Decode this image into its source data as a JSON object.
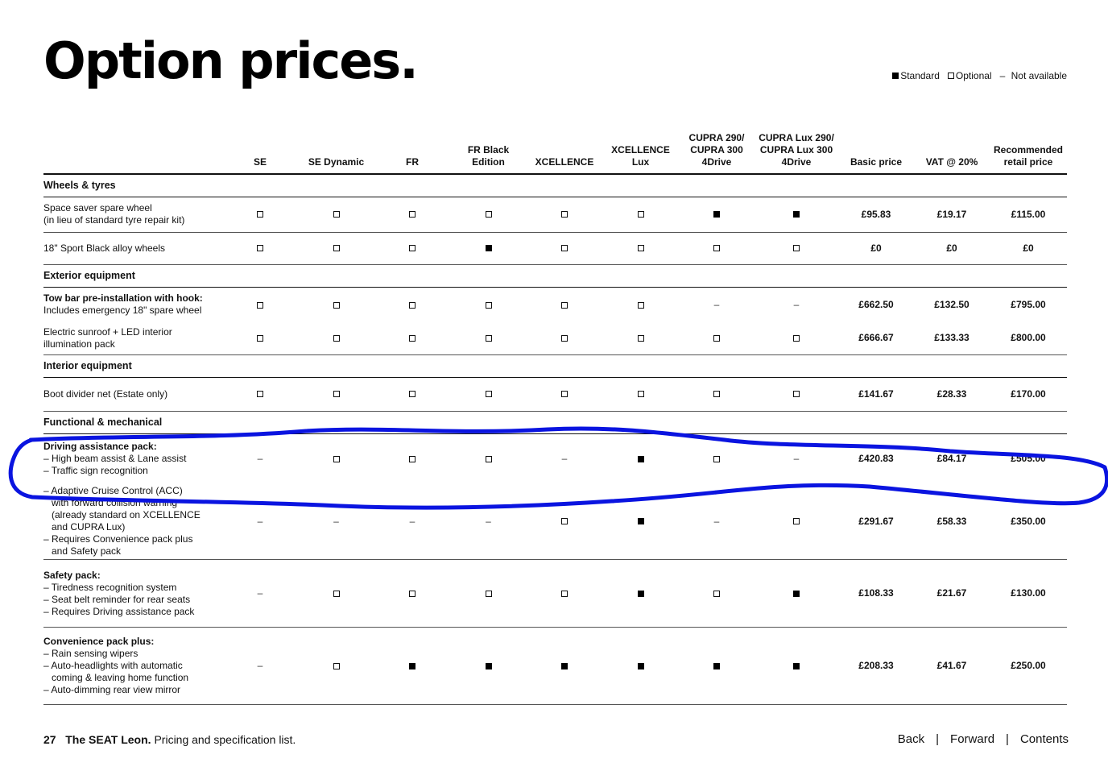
{
  "title": "Option prices.",
  "legend": {
    "standard": "Standard",
    "optional": "Optional",
    "not_available": "Not available",
    "dash": "–"
  },
  "columns": [
    "SE",
    "SE Dynamic",
    "FR",
    "FR Black Edition",
    "XCELLENCE",
    "XCELLENCE Lux",
    "CUPRA 290/ CUPRA 300 4Drive",
    "CUPRA Lux 290/ CUPRA Lux 300 4Drive",
    "Basic price",
    "VAT @ 20%",
    "Recommended retail price"
  ],
  "column_lines": [
    [],
    [],
    [],
    [
      "FR Black",
      "Edition"
    ],
    [],
    [],
    [
      "CUPRA 290/",
      "CUPRA 300",
      "4Drive"
    ],
    [
      "CUPRA Lux 290/",
      "CUPRA Lux 300",
      "4Drive"
    ],
    [],
    [],
    [
      "Recommended",
      "retail price"
    ]
  ],
  "sections": [
    {
      "title": "Wheels & tyres",
      "rows": [
        {
          "lines": [
            "Space saver spare wheel",
            "(in lieu of standard tyre repair kit)"
          ],
          "bold_first": false,
          "avail": [
            "O",
            "O",
            "O",
            "O",
            "O",
            "O",
            "S",
            "S"
          ],
          "basic": "£95.83",
          "vat": "£19.17",
          "rrp": "£115.00",
          "sep": true
        },
        {
          "lines": [
            "18\" Sport Black alloy wheels"
          ],
          "bold_first": false,
          "avail": [
            "O",
            "O",
            "O",
            "S",
            "O",
            "O",
            "O",
            "O"
          ],
          "basic": "£0",
          "vat": "£0",
          "rrp": "£0",
          "sep": true
        }
      ]
    },
    {
      "title": "Exterior equipment",
      "rows": [
        {
          "lines": [
            "Tow bar pre-installation with hook:",
            "Includes emergency 18\" spare wheel"
          ],
          "bold_first": true,
          "avail": [
            "O",
            "O",
            "O",
            "O",
            "O",
            "O",
            "N",
            "N"
          ],
          "basic": "£662.50",
          "vat": "£132.50",
          "rrp": "£795.00",
          "sep": false
        },
        {
          "lines": [
            "Electric sunroof + LED interior",
            "illumination pack"
          ],
          "bold_first": false,
          "avail": [
            "O",
            "O",
            "O",
            "O",
            "O",
            "O",
            "O",
            "O"
          ],
          "basic": "£666.67",
          "vat": "£133.33",
          "rrp": "£800.00",
          "sep": true
        }
      ]
    },
    {
      "title": "Interior equipment",
      "rows": [
        {
          "lines": [
            "Boot divider net (Estate only)"
          ],
          "bold_first": false,
          "avail": [
            "O",
            "O",
            "O",
            "O",
            "O",
            "O",
            "O",
            "O"
          ],
          "basic": "£141.67",
          "vat": "£28.33",
          "rrp": "£170.00",
          "sep": true
        }
      ]
    },
    {
      "title": "Functional & mechanical",
      "rows": [
        {
          "lines": [
            "Driving assistance pack:",
            "– High beam assist & Lane assist",
            "– Traffic sign recognition"
          ],
          "bold_first": true,
          "avail": [
            "N",
            "O",
            "O",
            "O",
            "N",
            "S",
            "O",
            "N"
          ],
          "basic": "£420.83",
          "vat": "£84.17",
          "rrp": "£505.00",
          "sep": false
        },
        {
          "lines": [
            "– Adaptive Cruise Control (ACC)",
            "with forward collision warning",
            "(already standard on XCELLENCE",
            "and CUPRA Lux)",
            "– Requires Convenience pack plus",
            "and Safety pack"
          ],
          "bold_first": false,
          "avail": [
            "N",
            "N",
            "N",
            "N",
            "O",
            "S",
            "N",
            "O"
          ],
          "basic": "£291.67",
          "vat": "£58.33",
          "rrp": "£350.00",
          "sep": true
        },
        {
          "lines": [
            "Safety pack:",
            "– Tiredness recognition system",
            "– Seat belt reminder for rear seats",
            "– Requires Driving assistance pack"
          ],
          "bold_first": true,
          "avail": [
            "N",
            "O",
            "O",
            "O",
            "O",
            "S",
            "O",
            "S"
          ],
          "basic": "£108.33",
          "vat": "£21.67",
          "rrp": "£130.00",
          "sep": true
        },
        {
          "lines": [
            "Convenience pack plus:",
            "– Rain sensing wipers",
            "– Auto-headlights with automatic",
            "coming & leaving home function",
            "– Auto-dimming rear view mirror"
          ],
          "bold_first": true,
          "avail": [
            "N",
            "O",
            "S",
            "S",
            "S",
            "S",
            "S",
            "S"
          ],
          "basic": "£208.33",
          "vat": "£41.67",
          "rrp": "£250.00",
          "sep": true
        }
      ]
    }
  ],
  "footer": {
    "page_number": "27",
    "brand": "The SEAT Leon.",
    "doc_title": "Pricing and specification list.",
    "nav": [
      "Back",
      "Forward",
      "Contents"
    ],
    "nav_separator": "|"
  },
  "annotation": {
    "color": "#0a14e0"
  }
}
